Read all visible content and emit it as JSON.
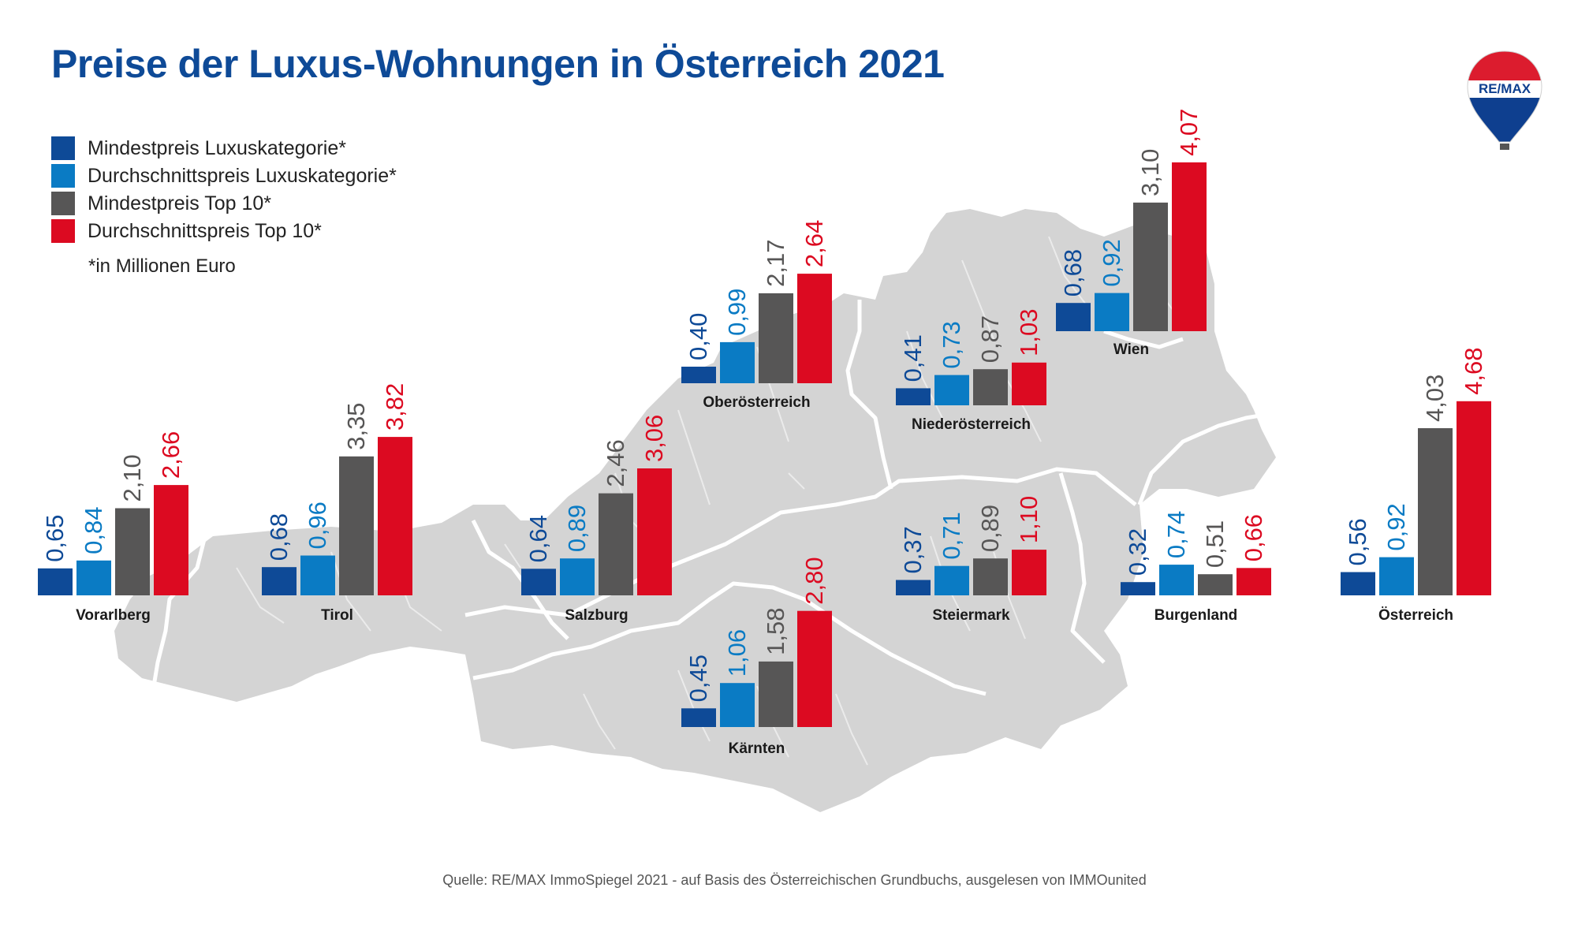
{
  "title": "Preise der Luxus-Wohnungen in Österreich 2021",
  "legend": [
    {
      "label": "Mindestpreis Luxuskategorie*",
      "color": "#0e4a97"
    },
    {
      "label": "Durchschnittspreis Luxuskategorie*",
      "color": "#0a7bc4"
    },
    {
      "label": "Mindestpreis Top 10*",
      "color": "#575656"
    },
    {
      "label": "Durchschnittspreis Top 10*",
      "color": "#dc0a21"
    }
  ],
  "unit_note": "*in Millionen Euro",
  "source": "Quelle: RE/MAX ImmoSpiegel 2021 - auf Basis des Österreichischen Grundbuchs, ausgelesen von IMMOunited",
  "logo_text": "RE/MAX",
  "map_color": "#d4d4d4",
  "chart_data": {
    "type": "bar",
    "unit": "Millionen Euro",
    "series_names": [
      "Mindestpreis Luxuskategorie*",
      "Durchschnittspreis Luxuskategorie*",
      "Mindestpreis Top 10*",
      "Durchschnittspreis Top 10*"
    ],
    "colors": [
      "#0e4a97",
      "#0a7bc4",
      "#575656",
      "#dc0a21"
    ],
    "label_colors": [
      "#0e4a97",
      "#0a7bc4",
      "#575656",
      "#dc0a21"
    ],
    "groups": [
      {
        "name": "Vorarlberg",
        "values": [
          0.65,
          0.84,
          2.1,
          2.66
        ],
        "labels": [
          "0,65",
          "0,84",
          "2,10",
          "2,66"
        ]
      },
      {
        "name": "Tirol",
        "values": [
          0.68,
          0.96,
          3.35,
          3.82
        ],
        "labels": [
          "0,68",
          "0,96",
          "3,35",
          "3,82"
        ]
      },
      {
        "name": "Salzburg",
        "values": [
          0.64,
          0.89,
          2.46,
          3.06
        ],
        "labels": [
          "0,64",
          "0,89",
          "2,46",
          "3,06"
        ]
      },
      {
        "name": "Oberösterreich",
        "values": [
          0.4,
          0.99,
          2.17,
          2.64
        ],
        "labels": [
          "0,40",
          "0,99",
          "2,17",
          "2,64"
        ]
      },
      {
        "name": "Kärnten",
        "values": [
          0.45,
          1.06,
          1.58,
          2.8
        ],
        "labels": [
          "0,45",
          "1,06",
          "1,58",
          "2,80"
        ]
      },
      {
        "name": "Niederösterreich",
        "values": [
          0.41,
          0.73,
          0.87,
          1.03
        ],
        "labels": [
          "0,41",
          "0,73",
          "0,87",
          "1,03"
        ]
      },
      {
        "name": "Steiermark",
        "values": [
          0.37,
          0.71,
          0.89,
          1.1
        ],
        "labels": [
          "0,37",
          "0,71",
          "0,89",
          "1,10"
        ]
      },
      {
        "name": "Wien",
        "values": [
          0.68,
          0.92,
          3.1,
          4.07
        ],
        "labels": [
          "0,68",
          "0,92",
          "3,10",
          "4,07"
        ]
      },
      {
        "name": "Burgenland",
        "values": [
          0.32,
          0.74,
          0.51,
          0.66
        ],
        "labels": [
          "0,32",
          "0,74",
          "0,51",
          "0,66"
        ]
      },
      {
        "name": "Österreich",
        "values": [
          0.56,
          0.92,
          4.03,
          4.68
        ],
        "labels": [
          "0,56",
          "0,92",
          "4,03",
          "4,68"
        ]
      }
    ]
  }
}
